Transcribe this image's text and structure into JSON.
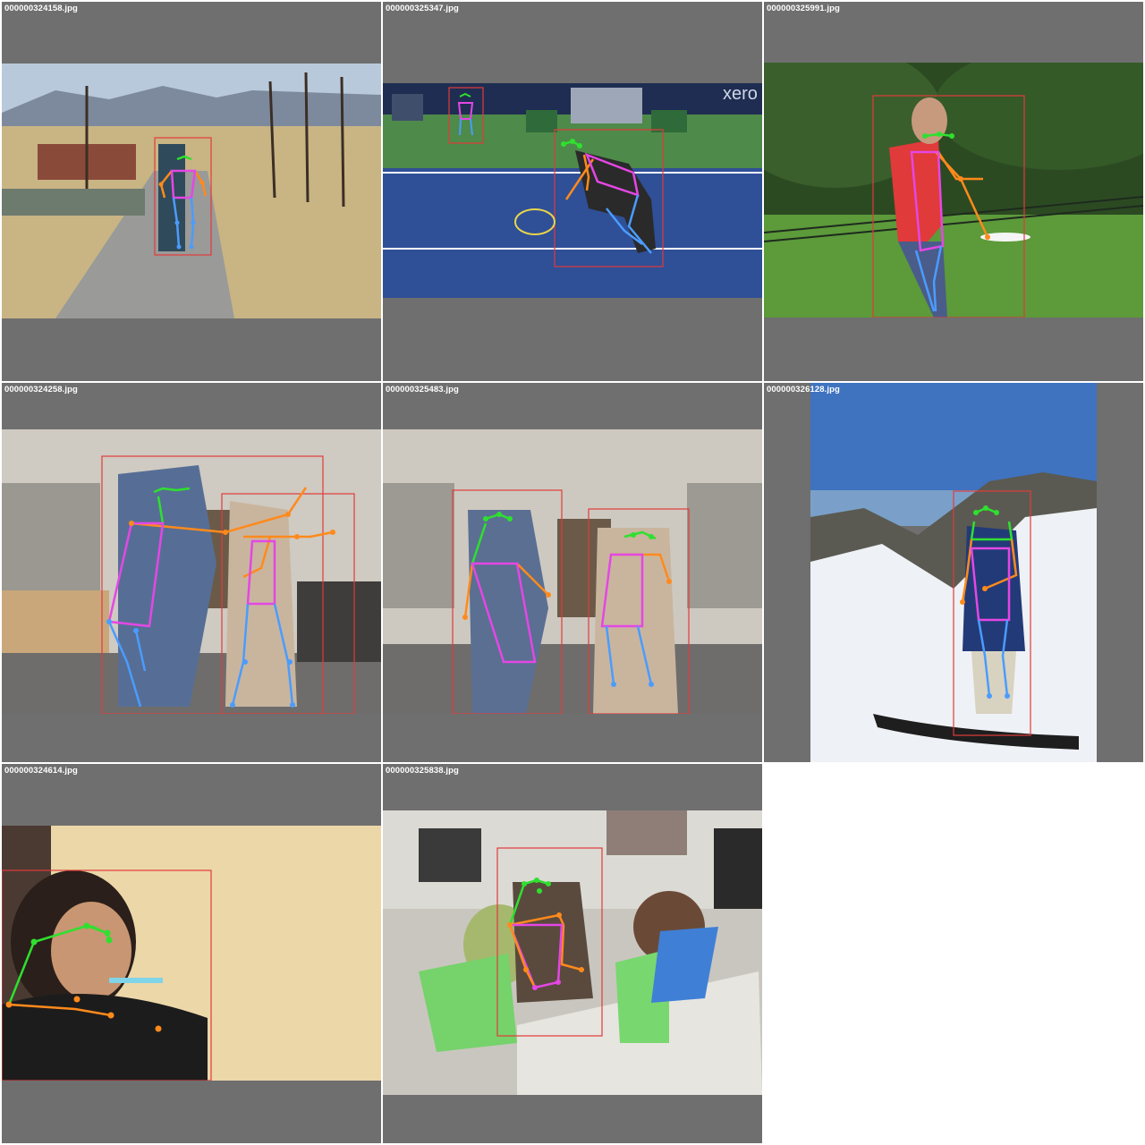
{
  "grid": {
    "tiles": [
      {
        "filename": "000000324158.jpg",
        "scene": "skateboarder-on-road"
      },
      {
        "filename": "000000325347.jpg",
        "scene": "tennis-player"
      },
      {
        "filename": "000000325991.jpg",
        "scene": "frisbee-player"
      },
      {
        "filename": "000000324258.jpg",
        "scene": "wii-players-living-room"
      },
      {
        "filename": "000000325483.jpg",
        "scene": "wii-players-living-room-2"
      },
      {
        "filename": "000000326128.jpg",
        "scene": "snowboarder-on-mountain"
      },
      {
        "filename": "000000324614.jpg",
        "scene": "woman-brushing-teeth"
      },
      {
        "filename": "000000325838.jpg",
        "scene": "woman-at-desk-with-laptops"
      }
    ]
  },
  "colors": {
    "background": "#6f6f6f",
    "bbox": "#e23b3b",
    "face_keypoints": "#2fe02f",
    "arm_keypoints": "#ff8a1c",
    "torso_keypoints": "#e447e4",
    "leg_keypoints": "#4a9cff"
  }
}
